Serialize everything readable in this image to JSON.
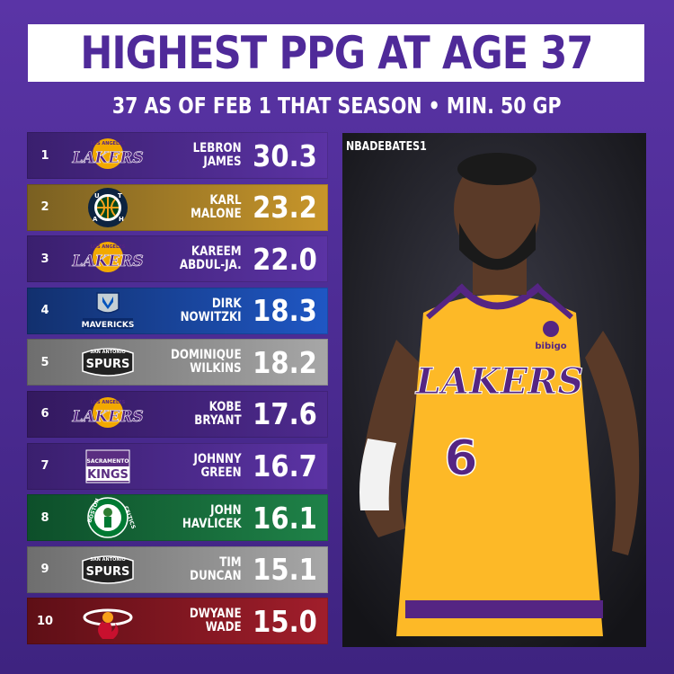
{
  "title": "HIGHEST PPG AT AGE 37",
  "subtitle": "37 AS OF FEB 1 THAT SEASON • MIN. 50 GP",
  "credit": "NBADEBATES1",
  "photo": {
    "jersey_text": "LAKERS",
    "jersey_number": "6",
    "sponsor": "bibigo"
  },
  "logo_text": {
    "lakers": "LAKERS",
    "lakers_top": "LOS ANGELES",
    "spurs": "SPURS",
    "spurs_top": "SAN ANTONIO",
    "kings": "KINGS",
    "kings_top": "SACRAMENTO",
    "mavs": "MAVERICKS",
    "celtics_left": "BOSTON",
    "celtics_right": "CELTICS",
    "jazz_letters": [
      "U",
      "T",
      "A",
      "H"
    ]
  },
  "rows": [
    {
      "rank": "1",
      "name": "LEBRON\nJAMES",
      "ppg": "30.3"
    },
    {
      "rank": "2",
      "name": "KARL\nMALONE",
      "ppg": "23.2"
    },
    {
      "rank": "3",
      "name": "KAREEM\nABDUL-JA.",
      "ppg": "22.0"
    },
    {
      "rank": "4",
      "name": "DIRK\nNOWITZKI",
      "ppg": "18.3"
    },
    {
      "rank": "5",
      "name": "DOMINIQUE\nWILKINS",
      "ppg": "18.2"
    },
    {
      "rank": "6",
      "name": "KOBE\nBRYANT",
      "ppg": "17.6"
    },
    {
      "rank": "7",
      "name": "JOHNNY\nGREEN",
      "ppg": "16.7"
    },
    {
      "rank": "8",
      "name": "JOHN\nHAVLICEK",
      "ppg": "16.1"
    },
    {
      "rank": "9",
      "name": "TIM\nDUNCAN",
      "ppg": "15.1"
    },
    {
      "rank": "10",
      "name": "DWYANE\nWADE",
      "ppg": "15.0"
    }
  ]
}
